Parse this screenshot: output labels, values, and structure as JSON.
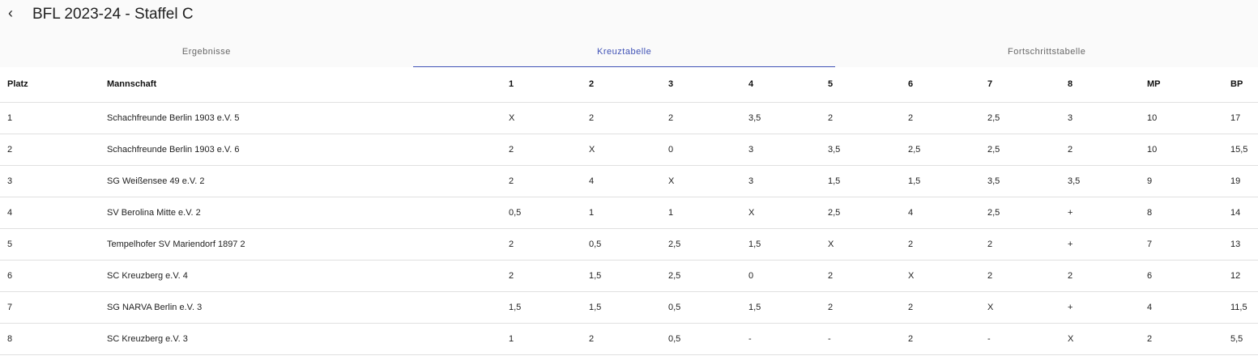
{
  "header": {
    "title": "BFL 2023-24 - Staffel C",
    "back_icon": "chevron-left-icon"
  },
  "tabs": [
    {
      "label": "Ergebnisse"
    },
    {
      "label": "Kreuztabelle",
      "active": true
    },
    {
      "label": "Fortschrittstabelle"
    }
  ],
  "accent_color": "#3f51b5",
  "table": {
    "columns": [
      "Platz",
      "Mannschaft",
      "1",
      "2",
      "3",
      "4",
      "5",
      "6",
      "7",
      "8",
      "MP",
      "BP"
    ],
    "rows": [
      [
        "1",
        "Schachfreunde Berlin 1903 e.V. 5",
        "X",
        "2",
        "2",
        "3,5",
        "2",
        "2",
        "2,5",
        "3",
        "10",
        "17"
      ],
      [
        "2",
        "Schachfreunde Berlin 1903 e.V. 6",
        "2",
        "X",
        "0",
        "3",
        "3,5",
        "2,5",
        "2,5",
        "2",
        "10",
        "15,5"
      ],
      [
        "3",
        "SG Weißensee 49 e.V. 2",
        "2",
        "4",
        "X",
        "3",
        "1,5",
        "1,5",
        "3,5",
        "3,5",
        "9",
        "19"
      ],
      [
        "4",
        "SV Berolina Mitte e.V. 2",
        "0,5",
        "1",
        "1",
        "X",
        "2,5",
        "4",
        "2,5",
        "+",
        "8",
        "14"
      ],
      [
        "5",
        "Tempelhofer SV Mariendorf 1897 2",
        "2",
        "0,5",
        "2,5",
        "1,5",
        "X",
        "2",
        "2",
        "+",
        "7",
        "13"
      ],
      [
        "6",
        "SC Kreuzberg e.V. 4",
        "2",
        "1,5",
        "2,5",
        "0",
        "2",
        "X",
        "2",
        "2",
        "6",
        "12"
      ],
      [
        "7",
        "SG NARVA Berlin e.V. 3",
        "1,5",
        "1,5",
        "0,5",
        "1,5",
        "2",
        "2",
        "X",
        "+",
        "4",
        "11,5"
      ],
      [
        "8",
        "SC Kreuzberg e.V. 3",
        "1",
        "2",
        "0,5",
        "-",
        "-",
        "2",
        "-",
        "X",
        "2",
        "5,5"
      ]
    ]
  }
}
